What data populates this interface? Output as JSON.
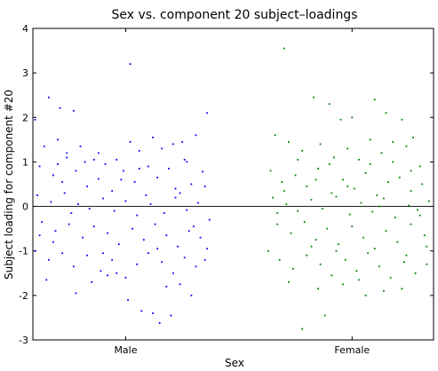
{
  "chart_data": {
    "type": "scatter",
    "title": "Sex vs. component 20 subject–loadings",
    "xlabel": "Sex",
    "ylabel": "Subject loading for component #20",
    "categories": [
      "Male",
      "Female"
    ],
    "ylim": [
      -3,
      4
    ],
    "yticks": [
      -3,
      -2,
      -1,
      0,
      1,
      2,
      3,
      4
    ],
    "reference_line_y": 0,
    "grid": false,
    "series": [
      {
        "category": "Male",
        "color": "#0000ff",
        "points": [
          [
            0.66,
            2.45
          ],
          [
            0.71,
            2.21
          ],
          [
            0.77,
            2.15
          ],
          [
            0.6,
            1.95
          ],
          [
            0.64,
            1.35
          ],
          [
            0.7,
            1.5
          ],
          [
            0.74,
            1.2
          ],
          [
            0.8,
            1.35
          ],
          [
            0.86,
            1.05
          ],
          [
            0.91,
            0.95
          ],
          [
            0.96,
            1.05
          ],
          [
            1.02,
            1.45
          ],
          [
            1.06,
            1.25
          ],
          [
            1.1,
            0.9
          ],
          [
            1.16,
            1.3
          ],
          [
            1.21,
            1.4
          ],
          [
            1.26,
            1.05
          ],
          [
            1.31,
            1.6
          ],
          [
            1.36,
            2.1
          ],
          [
            0.62,
            0.9
          ],
          [
            0.68,
            0.7
          ],
          [
            0.72,
            0.55
          ],
          [
            0.78,
            0.8
          ],
          [
            0.83,
            0.45
          ],
          [
            0.88,
            0.62
          ],
          [
            0.94,
            0.35
          ],
          [
            0.99,
            0.8
          ],
          [
            1.04,
            0.55
          ],
          [
            1.09,
            0.25
          ],
          [
            1.14,
            0.65
          ],
          [
            1.19,
            0.85
          ],
          [
            1.24,
            0.3
          ],
          [
            1.29,
            0.5
          ],
          [
            1.34,
            0.78
          ],
          [
            0.61,
            0.25
          ],
          [
            0.67,
            0.1
          ],
          [
            0.73,
            0.3
          ],
          [
            0.79,
            0.05
          ],
          [
            0.84,
            -0.05
          ],
          [
            0.9,
            0.18
          ],
          [
            0.95,
            -0.1
          ],
          [
            1.0,
            0.12
          ],
          [
            1.05,
            -0.2
          ],
          [
            1.11,
            0.05
          ],
          [
            1.17,
            -0.15
          ],
          [
            1.22,
            0.2
          ],
          [
            1.27,
            -0.08
          ],
          [
            1.32,
            0.08
          ],
          [
            1.37,
            -0.3
          ],
          [
            0.63,
            -0.35
          ],
          [
            0.69,
            -0.55
          ],
          [
            0.75,
            -0.4
          ],
          [
            0.81,
            -0.7
          ],
          [
            0.86,
            -0.45
          ],
          [
            0.92,
            -0.6
          ],
          [
            0.97,
            -0.85
          ],
          [
            1.03,
            -0.5
          ],
          [
            1.08,
            -0.75
          ],
          [
            1.13,
            -0.4
          ],
          [
            1.18,
            -0.65
          ],
          [
            1.23,
            -0.9
          ],
          [
            1.28,
            -0.55
          ],
          [
            1.33,
            -0.7
          ],
          [
            1.36,
            -0.95
          ],
          [
            0.6,
            -1.0
          ],
          [
            0.66,
            -1.2
          ],
          [
            0.72,
            -1.05
          ],
          [
            0.77,
            -1.35
          ],
          [
            0.83,
            -1.1
          ],
          [
            0.89,
            -1.45
          ],
          [
            0.94,
            -1.2
          ],
          [
            1.0,
            -1.6
          ],
          [
            1.05,
            -1.3
          ],
          [
            1.1,
            -1.05
          ],
          [
            1.16,
            -1.25
          ],
          [
            1.21,
            -1.5
          ],
          [
            1.26,
            -1.15
          ],
          [
            1.31,
            -1.35
          ],
          [
            1.35,
            -1.2
          ],
          [
            0.65,
            -1.65
          ],
          [
            0.78,
            -1.95
          ],
          [
            0.85,
            -1.7
          ],
          [
            0.96,
            -1.5
          ],
          [
            1.01,
            -2.1
          ],
          [
            1.12,
            -2.4
          ],
          [
            1.18,
            -1.8
          ],
          [
            1.24,
            -1.75
          ],
          [
            1.29,
            -2.0
          ],
          [
            0.92,
            -1.55
          ],
          [
            1.07,
            -2.35
          ],
          [
            1.15,
            -2.62
          ],
          [
            1.2,
            -2.45
          ],
          [
            1.02,
            3.2
          ],
          [
            0.88,
            1.2
          ],
          [
            1.12,
            1.55
          ],
          [
            0.7,
            0.95
          ],
          [
            1.25,
            1.45
          ],
          [
            0.76,
            -0.15
          ],
          [
            1.3,
            -0.45
          ],
          [
            0.98,
            0.6
          ],
          [
            0.82,
            1.0
          ],
          [
            1.14,
            -0.95
          ],
          [
            0.68,
            -0.8
          ],
          [
            1.22,
            0.4
          ],
          [
            0.9,
            -1.05
          ],
          [
            1.06,
            0.85
          ],
          [
            0.74,
            1.1
          ],
          [
            1.35,
            0.45
          ],
          [
            0.62,
            -0.65
          ],
          [
            1.27,
            1.0
          ]
        ]
      },
      {
        "category": "Female",
        "color": "#008000",
        "points": [
          [
            1.7,
            3.55
          ],
          [
            1.83,
            2.45
          ],
          [
            1.9,
            2.3
          ],
          [
            1.95,
            1.95
          ],
          [
            2.1,
            2.4
          ],
          [
            2.15,
            2.1
          ],
          [
            2.22,
            1.95
          ],
          [
            2.27,
            1.55
          ],
          [
            1.66,
            1.6
          ],
          [
            1.72,
            1.45
          ],
          [
            1.78,
            1.25
          ],
          [
            1.86,
            1.4
          ],
          [
            1.92,
            1.1
          ],
          [
            1.98,
            1.3
          ],
          [
            2.03,
            1.05
          ],
          [
            2.08,
            1.5
          ],
          [
            2.13,
            1.2
          ],
          [
            2.18,
            1.0
          ],
          [
            2.24,
            1.35
          ],
          [
            2.3,
            0.9
          ],
          [
            1.64,
            0.8
          ],
          [
            1.69,
            0.55
          ],
          [
            1.75,
            0.7
          ],
          [
            1.8,
            0.45
          ],
          [
            1.85,
            0.85
          ],
          [
            1.91,
            0.3
          ],
          [
            1.96,
            0.6
          ],
          [
            2.01,
            0.4
          ],
          [
            2.06,
            0.75
          ],
          [
            2.11,
            0.25
          ],
          [
            2.16,
            0.55
          ],
          [
            2.21,
            0.65
          ],
          [
            2.26,
            0.35
          ],
          [
            2.31,
            0.5
          ],
          [
            1.65,
            0.2
          ],
          [
            1.71,
            0.05
          ],
          [
            1.76,
            -0.1
          ],
          [
            1.82,
            0.15
          ],
          [
            1.87,
            -0.05
          ],
          [
            1.93,
            0.22
          ],
          [
            1.99,
            -0.18
          ],
          [
            2.04,
            0.08
          ],
          [
            2.09,
            -0.12
          ],
          [
            2.14,
            0.18
          ],
          [
            2.19,
            -0.25
          ],
          [
            2.25,
            0.02
          ],
          [
            2.29,
            -0.08
          ],
          [
            2.34,
            0.12
          ],
          [
            1.67,
            -0.4
          ],
          [
            1.73,
            -0.6
          ],
          [
            1.79,
            -0.35
          ],
          [
            1.84,
            -0.75
          ],
          [
            1.89,
            -0.5
          ],
          [
            1.94,
            -0.85
          ],
          [
            2.0,
            -0.45
          ],
          [
            2.05,
            -0.7
          ],
          [
            2.1,
            -0.95
          ],
          [
            2.15,
            -0.55
          ],
          [
            2.2,
            -0.8
          ],
          [
            2.26,
            -0.4
          ],
          [
            2.32,
            -0.65
          ],
          [
            1.63,
            -1.0
          ],
          [
            1.68,
            -1.2
          ],
          [
            1.74,
            -1.4
          ],
          [
            1.8,
            -1.1
          ],
          [
            1.86,
            -1.3
          ],
          [
            1.91,
            -1.55
          ],
          [
            1.97,
            -1.2
          ],
          [
            2.02,
            -1.45
          ],
          [
            2.07,
            -1.05
          ],
          [
            2.12,
            -1.35
          ],
          [
            2.17,
            -1.6
          ],
          [
            2.23,
            -1.25
          ],
          [
            2.28,
            -1.5
          ],
          [
            2.33,
            -1.3
          ],
          [
            1.72,
            -1.7
          ],
          [
            1.85,
            -1.85
          ],
          [
            1.96,
            -1.75
          ],
          [
            2.06,
            -2.0
          ],
          [
            2.14,
            -1.9
          ],
          [
            2.22,
            -1.85
          ],
          [
            1.88,
            -2.45
          ],
          [
            1.78,
            -2.75
          ],
          [
            2.0,
            2.0
          ],
          [
            1.9,
            0.95
          ],
          [
            2.12,
            0.0
          ],
          [
            1.82,
            -0.9
          ],
          [
            2.24,
            -1.1
          ],
          [
            1.7,
            0.35
          ],
          [
            2.18,
            1.45
          ],
          [
            1.76,
            1.05
          ],
          [
            2.3,
            -0.2
          ],
          [
            1.93,
            -1.0
          ],
          [
            2.08,
            0.95
          ],
          [
            1.67,
            -0.15
          ],
          [
            2.26,
            0.8
          ],
          [
            1.84,
            0.6
          ],
          [
            2.03,
            -1.65
          ],
          [
            1.98,
            0.45
          ],
          [
            2.33,
            -0.9
          ]
        ]
      }
    ]
  }
}
